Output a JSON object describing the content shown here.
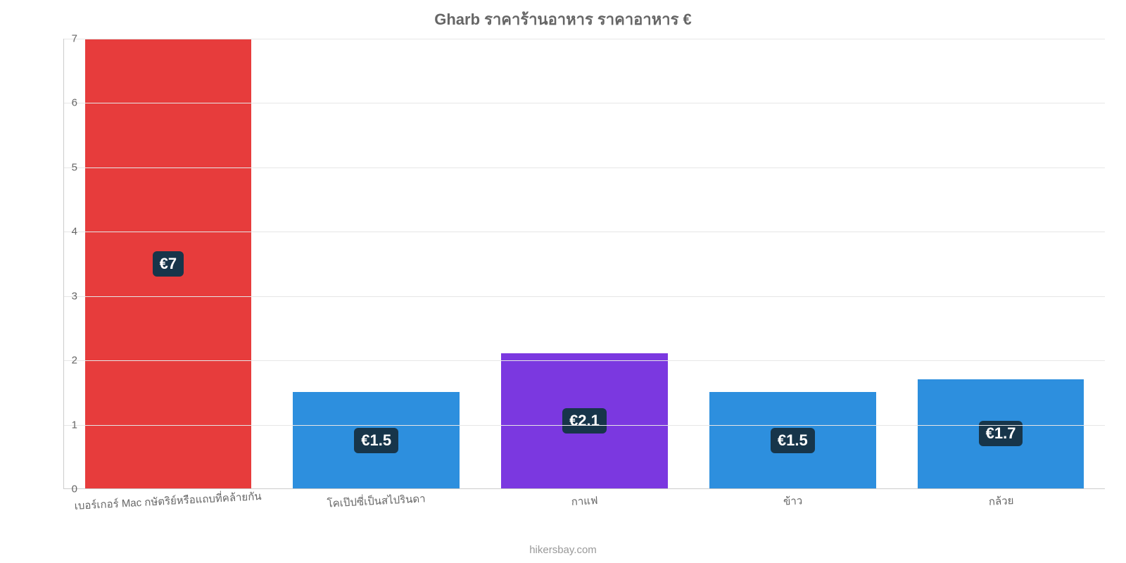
{
  "chart": {
    "type": "bar",
    "title": "Gharb ราคาร้านอาหาร ราคาอาหาร €",
    "title_fontsize": 22,
    "title_color": "#666666",
    "background_color": "#ffffff",
    "axis_color": "#cccccc",
    "grid_color": "#e6e6e6",
    "y": {
      "min": 0,
      "max": 7,
      "step": 1,
      "tick_color": "#666666",
      "tick_fontsize": 15
    },
    "bar_width_pct": 80,
    "items": [
      {
        "category": "เบอร์เกอร์ Mac กษัตริย์หรือแถบที่คล้ายกัน",
        "value": 7,
        "label": "€7",
        "color": "#e73c3c"
      },
      {
        "category": "โคเป๊ปซี่เป็นสไปรินดา",
        "value": 1.5,
        "label": "€1.5",
        "color": "#2d8fde"
      },
      {
        "category": "กาแฟ",
        "value": 2.1,
        "label": "€2.1",
        "color": "#7b38e0"
      },
      {
        "category": "ข้าว",
        "value": 1.5,
        "label": "€1.5",
        "color": "#2d8fde"
      },
      {
        "category": "กล้วย",
        "value": 1.7,
        "label": "€1.7",
        "color": "#2d8fde"
      }
    ],
    "value_label": {
      "bg": "#17354a",
      "color": "#ffffff",
      "fontsize": 22
    },
    "x_label": {
      "color": "#666666",
      "fontsize": 15,
      "rotate_deg": -3
    },
    "credit": {
      "text": "hikersbay.com",
      "color": "#999999",
      "fontsize": 15
    }
  }
}
